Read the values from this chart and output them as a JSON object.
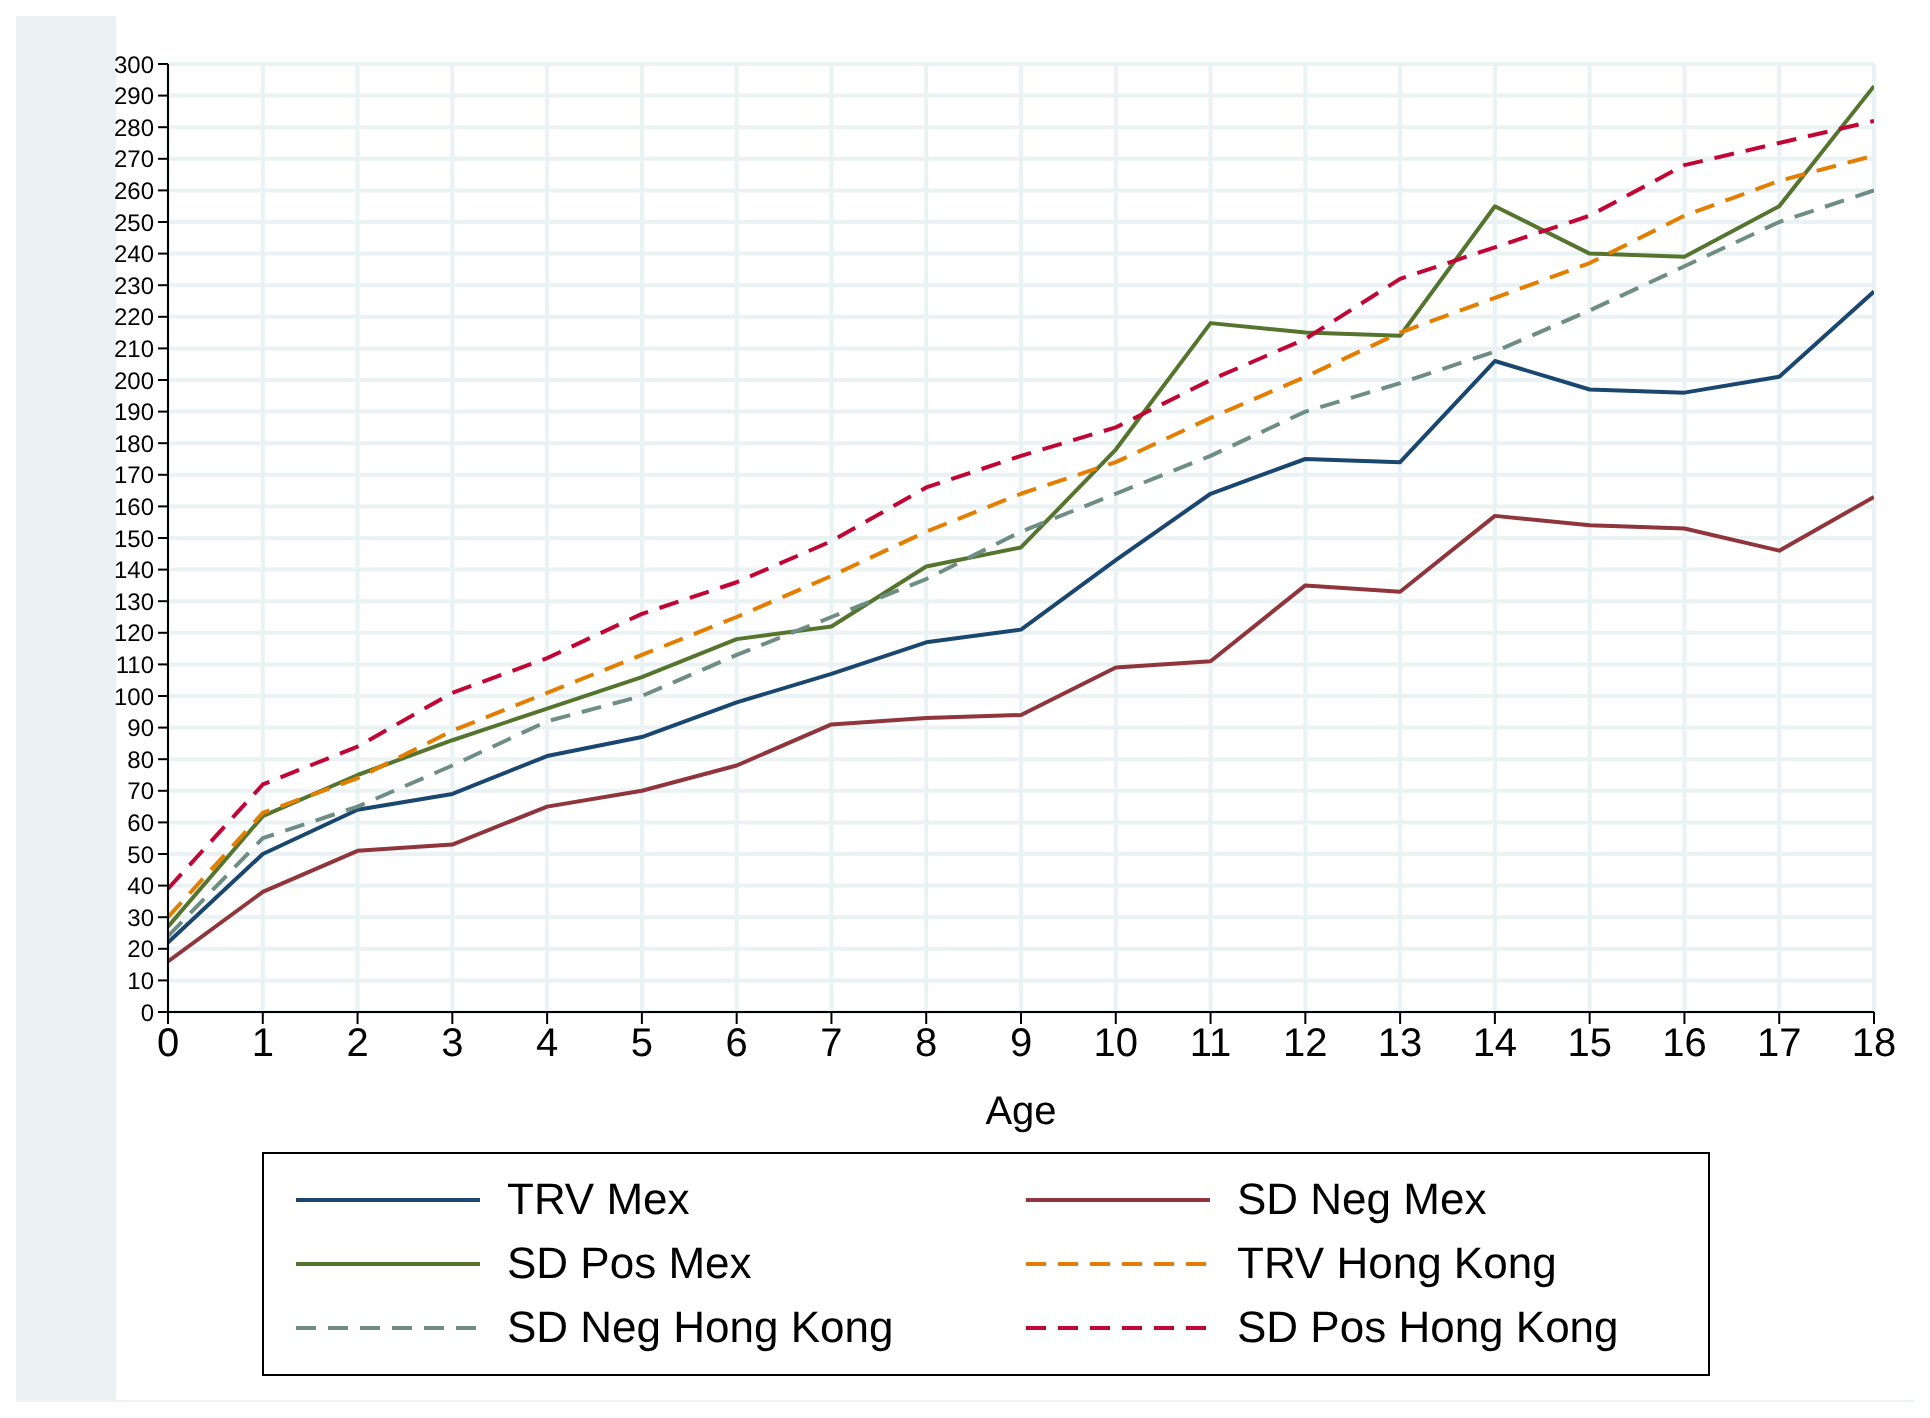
{
  "chart_data": {
    "type": "line",
    "xlabel": "Age",
    "x": [
      0,
      1,
      2,
      3,
      4,
      5,
      6,
      7,
      8,
      9,
      10,
      11,
      12,
      13,
      14,
      15,
      16,
      17,
      18
    ],
    "xlim": [
      0,
      18
    ],
    "xticks": [
      0,
      1,
      2,
      3,
      4,
      5,
      6,
      7,
      8,
      9,
      10,
      11,
      12,
      13,
      14,
      15,
      16,
      17,
      18
    ],
    "ylim": [
      0,
      300
    ],
    "yticks": [
      0,
      10,
      20,
      30,
      40,
      50,
      60,
      70,
      80,
      90,
      100,
      110,
      120,
      130,
      140,
      150,
      160,
      170,
      180,
      190,
      200,
      210,
      220,
      230,
      240,
      250,
      260,
      270,
      280,
      290,
      300
    ],
    "grid": true,
    "legend": "bottom",
    "marker": "none",
    "series": [
      {
        "name": "TRV Mex",
        "color": "#1a476f",
        "line_style": "solid",
        "values": [
          22,
          50,
          64,
          69,
          81,
          87,
          98,
          107,
          117,
          121,
          143,
          164,
          175,
          174,
          206,
          197,
          196,
          201,
          228
        ]
      },
      {
        "name": "SD Neg Mex",
        "color": "#90353b",
        "line_style": "solid",
        "values": [
          16,
          38,
          51,
          53,
          65,
          70,
          78,
          91,
          93,
          94,
          109,
          111,
          135,
          133,
          157,
          154,
          153,
          146,
          163
        ]
      },
      {
        "name": "SD Pos Mex",
        "color": "#55752f",
        "line_style": "solid",
        "values": [
          27,
          62,
          75,
          86,
          96,
          106,
          118,
          122,
          141,
          147,
          178,
          218,
          215,
          214,
          255,
          240,
          239,
          255,
          293
        ]
      },
      {
        "name": "TRV Hong Kong",
        "color": "#e37e00",
        "line_style": "dashed",
        "values": [
          30,
          63,
          74,
          89,
          101,
          113,
          125,
          138,
          152,
          164,
          174,
          188,
          201,
          215,
          226,
          237,
          252,
          263,
          271
        ]
      },
      {
        "name": "SD Neg Hong Kong",
        "color": "#6e8e84",
        "line_style": "dashed",
        "values": [
          24,
          55,
          65,
          78,
          92,
          100,
          113,
          125,
          137,
          152,
          164,
          176,
          190,
          199,
          209,
          222,
          236,
          250,
          260
        ]
      },
      {
        "name": "SD Pos Hong Kong",
        "color": "#c10534",
        "line_style": "dashed",
        "values": [
          39,
          72,
          84,
          101,
          112,
          126,
          136,
          149,
          166,
          176,
          185,
          200,
          213,
          232,
          242,
          252,
          268,
          275,
          282
        ]
      }
    ]
  }
}
